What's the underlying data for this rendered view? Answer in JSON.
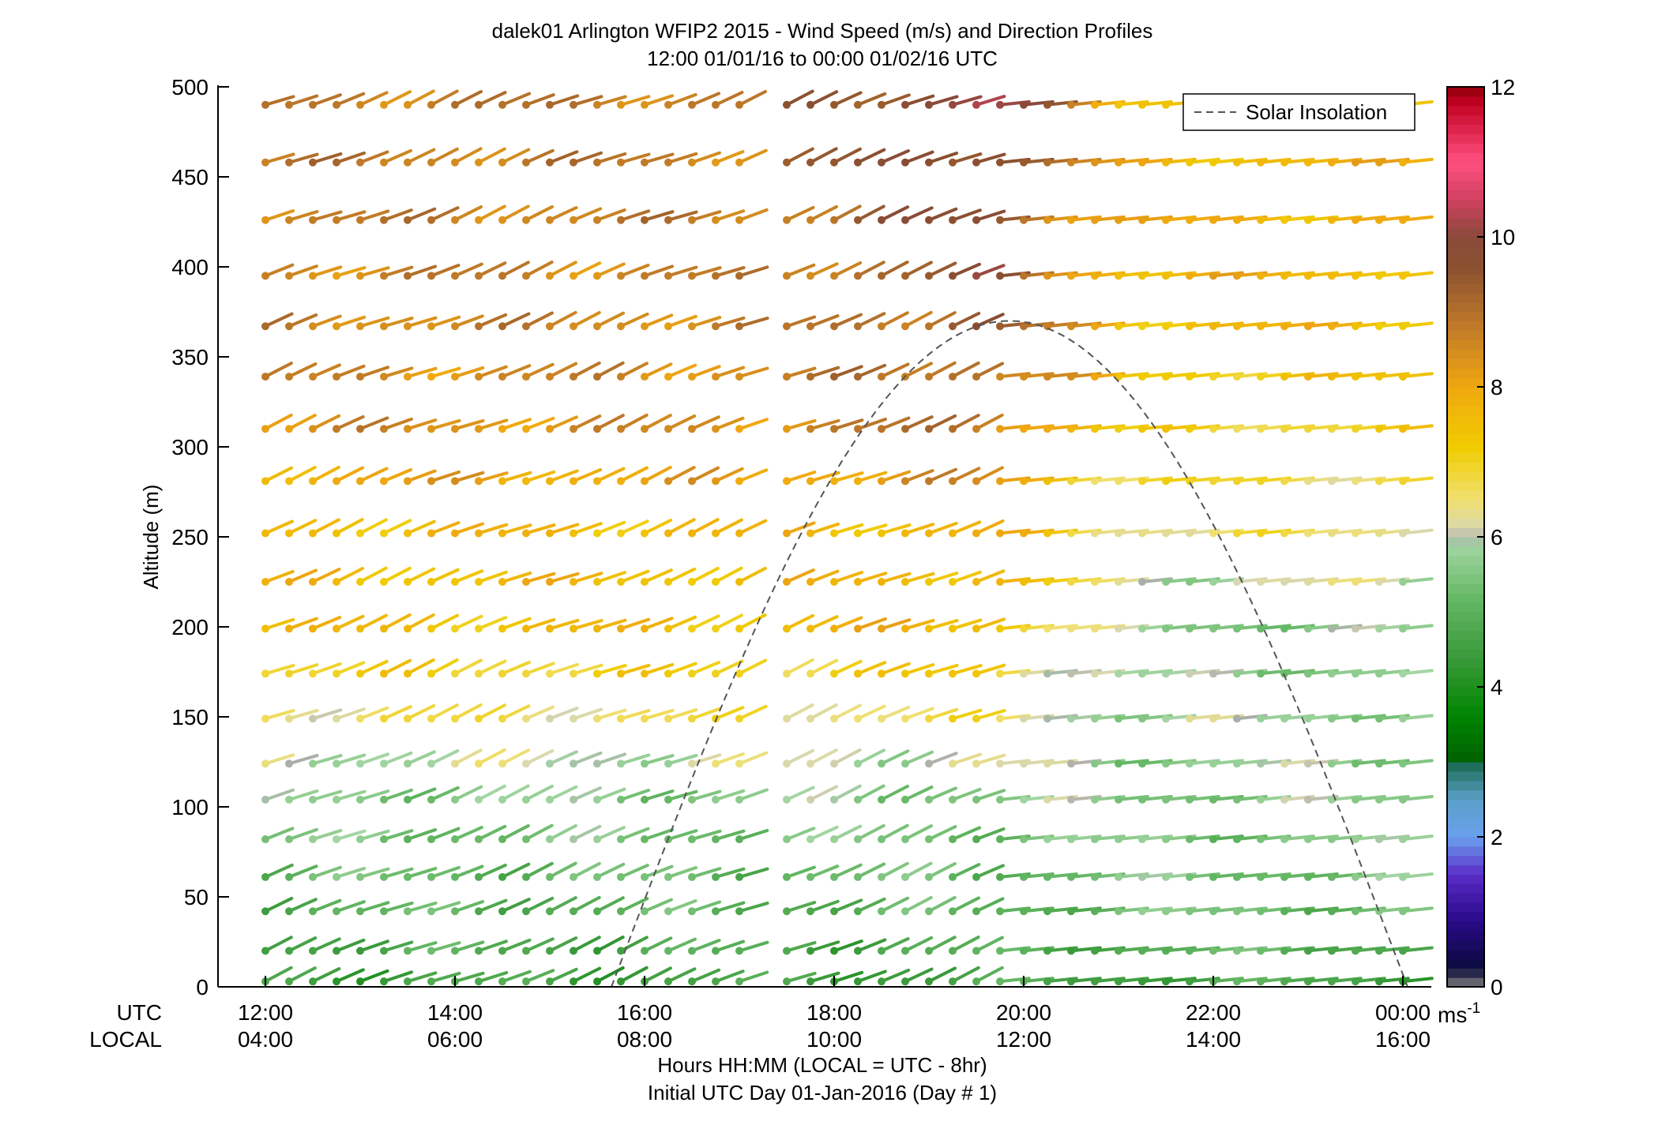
{
  "chart_data": {
    "type": "wind-barb-profile",
    "title": "dalek01 Arlington WFIP2 2015 - Wind Speed (m/s) and Direction Profiles",
    "subtitle": "12:00 01/01/16 to 00:00 01/02/16  UTC",
    "ylabel": "Altitude (m)",
    "xlabel": "Hours HH:MM  (LOCAL = UTC - 8hr)",
    "xlabel2": "Initial UTC Day 01-Jan-2016 (Day # 1)",
    "ylim": [
      0,
      500
    ],
    "xlim_hours": [
      11.5,
      24.3
    ],
    "yticks": [
      0,
      50,
      100,
      150,
      200,
      250,
      300,
      350,
      400,
      450,
      500
    ],
    "utc_row_label": "UTC",
    "local_row_label": "LOCAL",
    "utc_ticks": [
      "12:00",
      "14:00",
      "16:00",
      "18:00",
      "20:00",
      "22:00",
      "00:00"
    ],
    "local_ticks": [
      "04:00",
      "06:00",
      "08:00",
      "10:00",
      "12:00",
      "14:00",
      "16:00"
    ],
    "tick_hours": [
      12,
      14,
      16,
      18,
      20,
      22,
      24
    ],
    "legend": {
      "entries": [
        "Solar Insolation"
      ],
      "placement": "top-right"
    },
    "colorbar": {
      "min": 0,
      "max": 12,
      "ticks": [
        "0",
        "2",
        "4",
        "6",
        "8",
        "10",
        "12"
      ],
      "unit_base": "ms",
      "unit_exp": "-1"
    },
    "altitudes": [
      3,
      20,
      42,
      61,
      82,
      104,
      124,
      149,
      174,
      199,
      225,
      252,
      281,
      310,
      339,
      367,
      395,
      426,
      458,
      490
    ],
    "time_start_hour": 12.0,
    "time_step_hour": 0.25,
    "time_count": 49,
    "gap_hours": [
      17.25
    ],
    "speed_profile": {
      "altitudes": [
        3,
        42,
        104,
        149,
        199,
        252,
        310,
        367,
        426,
        490
      ],
      "morning": [
        4.6,
        5.0,
        5.6,
        6.6,
        7.5,
        7.6,
        8.4,
        8.6,
        8.7,
        8.8
      ],
      "midday": [
        4.6,
        5.0,
        5.6,
        6.6,
        7.8,
        7.8,
        9.0,
        9.4,
        9.8,
        10.4
      ],
      "afternoon": [
        4.7,
        5.3,
        5.6,
        5.8,
        5.6,
        6.5,
        7.0,
        7.6,
        7.8,
        7.6
      ]
    },
    "solar_insolation": {
      "sunrise_hour": 15.65,
      "sunset_hour": 24.05,
      "peak_altitude_scale": 370
    },
    "direction_note": "Barbs rise toward upper-right throughout (westerly/southwesterly flow)."
  }
}
